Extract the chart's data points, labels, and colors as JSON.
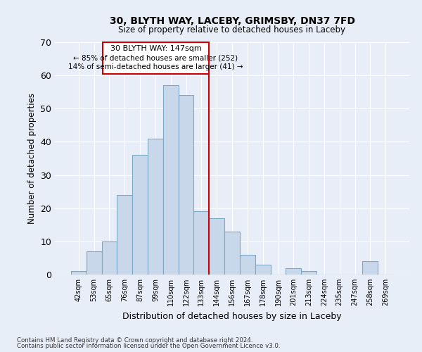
{
  "title1": "30, BLYTH WAY, LACEBY, GRIMSBY, DN37 7FD",
  "title2": "Size of property relative to detached houses in Laceby",
  "xlabel": "Distribution of detached houses by size in Laceby",
  "ylabel": "Number of detached properties",
  "bar_labels": [
    "42sqm",
    "53sqm",
    "65sqm",
    "76sqm",
    "87sqm",
    "99sqm",
    "110sqm",
    "122sqm",
    "133sqm",
    "144sqm",
    "156sqm",
    "167sqm",
    "178sqm",
    "190sqm",
    "201sqm",
    "213sqm",
    "224sqm",
    "235sqm",
    "247sqm",
    "258sqm",
    "269sqm"
  ],
  "bar_heights": [
    1,
    7,
    10,
    24,
    36,
    41,
    57,
    54,
    19,
    17,
    13,
    6,
    3,
    0,
    2,
    1,
    0,
    0,
    0,
    4,
    0
  ],
  "bar_color": "#c8d8ea",
  "bar_edge_color": "#7aaac8",
  "vline_color": "#cc0000",
  "vline_x": 8.5,
  "box_color": "#cc0000",
  "background_color": "#e8eef8",
  "annotation_title": "30 BLYTH WAY: 147sqm",
  "annotation_line1": "← 85% of detached houses are smaller (252)",
  "annotation_line2": "14% of semi-detached houses are larger (41) →",
  "ylim": [
    0,
    70
  ],
  "yticks": [
    0,
    10,
    20,
    30,
    40,
    50,
    60,
    70
  ],
  "footnote1": "Contains HM Land Registry data © Crown copyright and database right 2024.",
  "footnote2": "Contains public sector information licensed under the Open Government Licence v3.0."
}
